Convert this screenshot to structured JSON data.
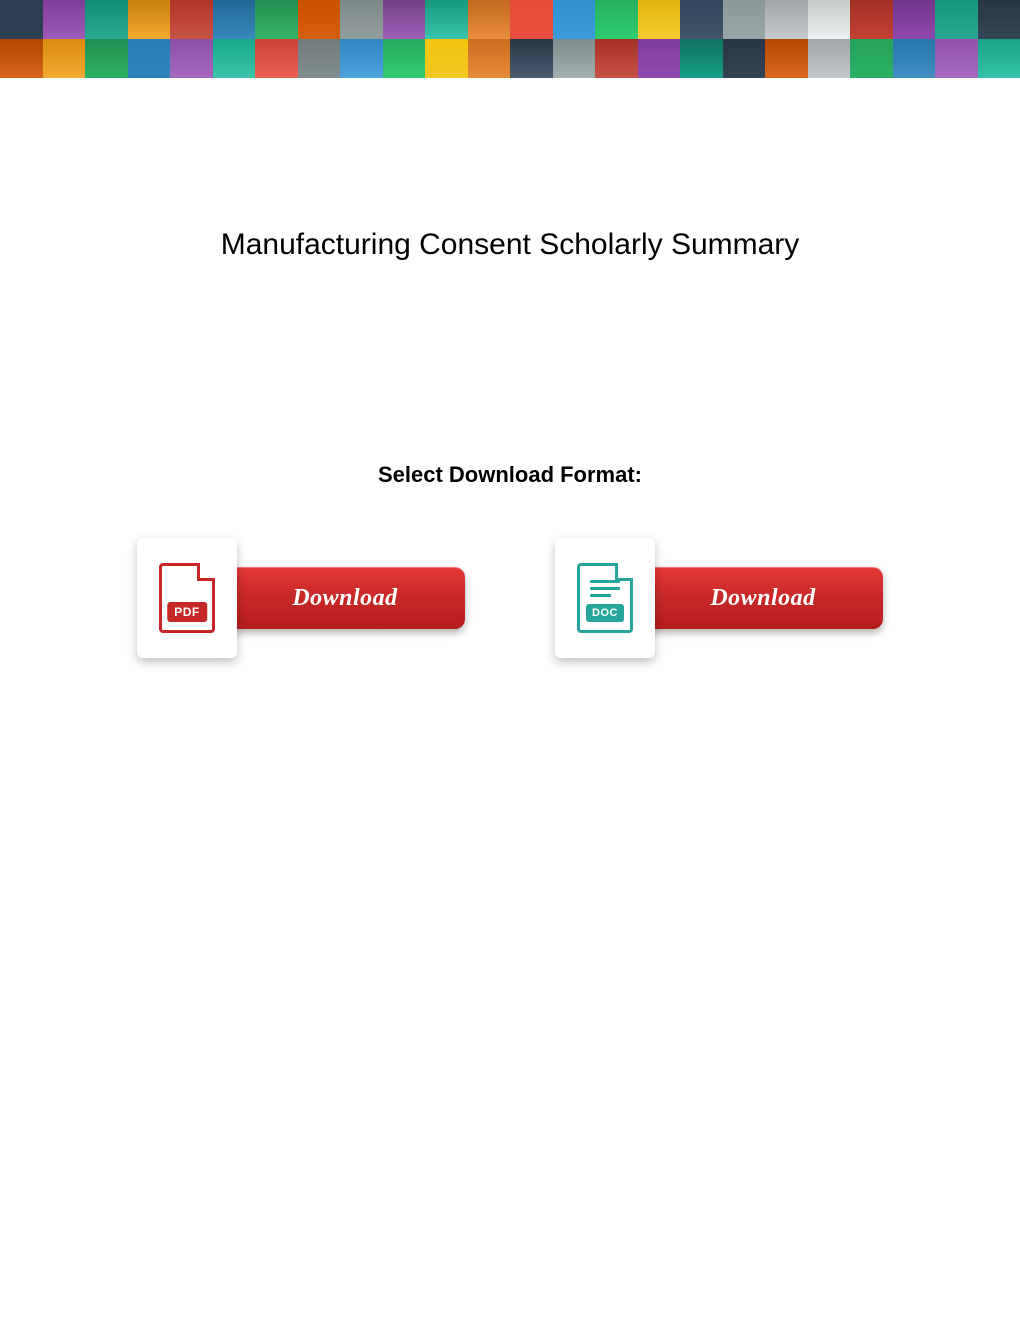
{
  "page": {
    "title": "Manufacturing Consent Scholarly Summary",
    "subtitle": "Select Download Format:"
  },
  "downloads": {
    "pdf": {
      "button_label": "Download",
      "icon_label": "PDF",
      "icon_color": "#c62828"
    },
    "doc": {
      "button_label": "Download",
      "icon_label": "DOC",
      "icon_color": "#26a69a"
    },
    "button_bg_gradient": [
      "#e53935",
      "#c62828",
      "#b71c1c"
    ],
    "button_text_color": "#ffffff"
  },
  "banner": {
    "rows": 2,
    "cols": 24,
    "tile_colors": [
      "#2c3e50",
      "#8e44ad",
      "#16a085",
      "#f39c12",
      "#c0392b",
      "#2980b9",
      "#27ae60",
      "#d35400",
      "#7f8c8d",
      "#9b59b6",
      "#1abc9c",
      "#e67e22",
      "#e74c3c",
      "#3498db",
      "#2ecc71",
      "#f1c40f",
      "#34495e",
      "#95a5a6",
      "#bdc3c7",
      "#ecf0f1",
      "#c0392b",
      "#8e44ad",
      "#16a085",
      "#2c3e50",
      "#d35400",
      "#f39c12",
      "#27ae60",
      "#2980b9",
      "#9b59b6",
      "#1abc9c",
      "#e74c3c",
      "#7f8c8d",
      "#3498db",
      "#2ecc71",
      "#f1c40f",
      "#e67e22",
      "#34495e",
      "#95a5a6",
      "#c0392b",
      "#8e44ad",
      "#16a085",
      "#2c3e50",
      "#d35400",
      "#bdc3c7",
      "#27ae60",
      "#2980b9",
      "#9b59b6",
      "#1abc9c"
    ]
  }
}
